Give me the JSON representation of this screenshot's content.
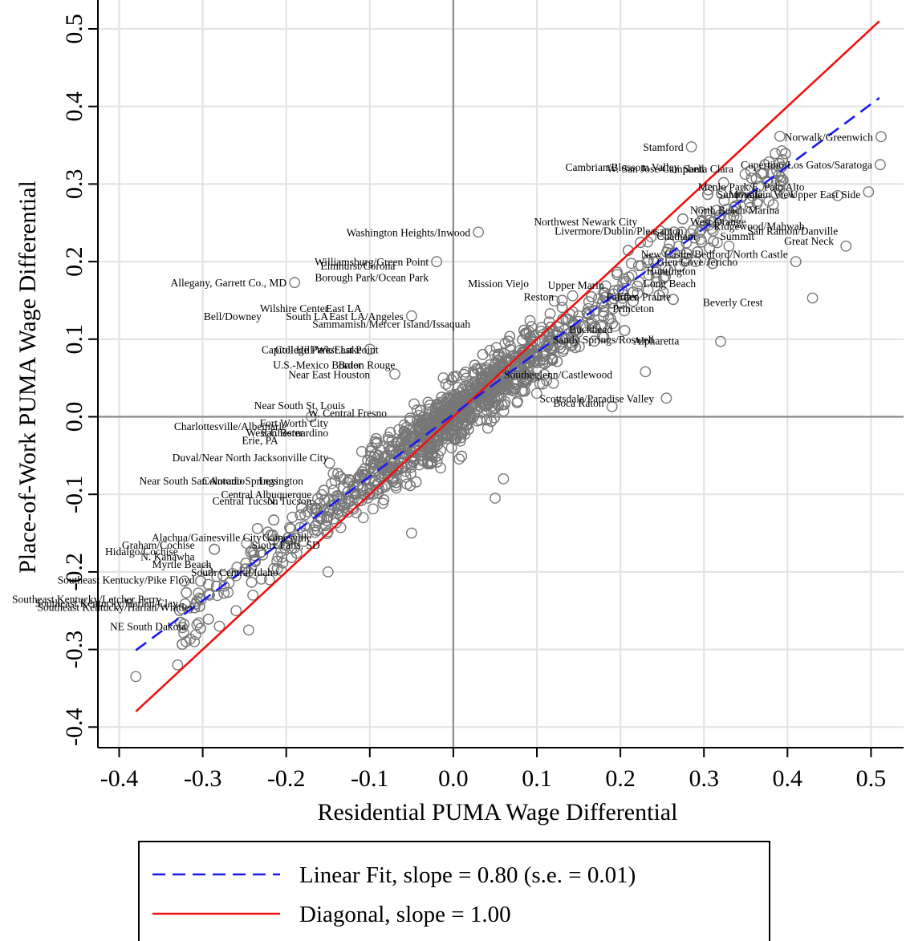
{
  "chart_data": {
    "type": "scatter",
    "xlabel": "Residential PUMA Wage Differential",
    "ylabel": "Place-of-Work PUMA Wage Differential",
    "xlim": [
      -0.42,
      0.535
    ],
    "ylim": [
      -0.44,
      0.535
    ],
    "x_ticks": [
      -0.4,
      -0.3,
      -0.2,
      -0.1,
      0.0,
      0.1,
      0.2,
      0.3,
      0.4,
      0.5
    ],
    "x_tick_labels": [
      "-0.4",
      "-0.3",
      "-0.2",
      "-0.1",
      "0.0",
      "0.1",
      "0.2",
      "0.3",
      "0.4",
      "0.5"
    ],
    "y_ticks": [
      -0.4,
      -0.3,
      -0.2,
      -0.1,
      0.0,
      0.1,
      0.2,
      0.3,
      0.4,
      0.5
    ],
    "y_tick_labels": [
      "-0.4",
      "-0.3",
      "-0.2",
      "-0.1",
      "0.0",
      "0.1",
      "0.2",
      "0.3",
      "0.4",
      "0.5"
    ],
    "grid": true,
    "reference_lines": {
      "x": 0.0,
      "y": 0.0
    },
    "colors": {
      "points": "#777777",
      "fit": "#1a1aee",
      "diagonal": "#ee1111",
      "grid": "#e3e3e3",
      "zero": "#8c8c8c"
    },
    "fit_line": {
      "name": "Linear Fit, slope =  0.80 (s.e. =  0.01)",
      "slope": 0.8,
      "intercept": 0.003,
      "x_range": [
        -0.38,
        0.51
      ],
      "style": "dashed"
    },
    "diagonal_line": {
      "name": "Diagonal, slope = 1.00",
      "slope": 1.0,
      "intercept": 0.0,
      "x_range": [
        -0.38,
        0.51
      ],
      "style": "solid"
    },
    "cloud_note": "approximately 2,000 PUMA points clustered along the diagonal",
    "points": [
      [
        -0.38,
        -0.335
      ],
      [
        -0.33,
        -0.32
      ],
      [
        -0.32,
        -0.29
      ],
      [
        -0.31,
        -0.29
      ],
      [
        -0.28,
        -0.27
      ],
      [
        -0.26,
        -0.25
      ],
      [
        -0.24,
        -0.23
      ],
      [
        -0.22,
        -0.21
      ],
      [
        -0.18,
        -0.15
      ],
      [
        -0.15,
        -0.12
      ],
      [
        -0.12,
        -0.09
      ],
      [
        -0.09,
        -0.07
      ],
      [
        -0.06,
        -0.04
      ],
      [
        -0.03,
        -0.01
      ],
      [
        0.0,
        0.01
      ],
      [
        0.03,
        0.03
      ],
      [
        0.06,
        0.05
      ],
      [
        0.09,
        0.08
      ],
      [
        0.12,
        0.11
      ],
      [
        0.15,
        0.13
      ],
      [
        0.18,
        0.16
      ],
      [
        0.21,
        0.18
      ],
      [
        0.24,
        0.2
      ],
      [
        0.27,
        0.22
      ],
      [
        0.29,
        0.2
      ],
      [
        0.33,
        0.22
      ],
      [
        0.41,
        0.2
      ],
      [
        0.47,
        0.22
      ],
      [
        0.285,
        0.348
      ],
      [
        0.512,
        0.361
      ],
      [
        0.511,
        0.325
      ],
      [
        0.497,
        0.29
      ],
      [
        0.46,
        0.285
      ],
      [
        0.43,
        0.153
      ],
      [
        0.32,
        0.097
      ],
      [
        0.255,
        0.024
      ],
      [
        0.23,
        0.058
      ],
      [
        0.19,
        0.013
      ],
      [
        0.03,
        0.238
      ],
      [
        -0.02,
        0.2
      ],
      [
        -0.19,
        0.173
      ],
      [
        -0.05,
        0.13
      ],
      [
        -0.1,
        0.087
      ],
      [
        -0.07,
        0.055
      ],
      [
        -0.05,
        -0.15
      ],
      [
        0.05,
        -0.105
      ],
      [
        0.06,
        -0.08
      ],
      [
        -0.15,
        -0.2
      ],
      [
        -0.245,
        -0.275
      ],
      [
        -0.17,
        0.0
      ]
    ],
    "labels": [
      {
        "text": "Norwalk/Greenwich",
        "x": 0.512,
        "y": 0.361
      },
      {
        "text": "Stamford",
        "x": 0.285,
        "y": 0.348
      },
      {
        "text": "Cupertino/Los Gatos/Saratoga",
        "x": 0.511,
        "y": 0.325
      },
      {
        "text": "Cambrian/Blossom Valley",
        "x": 0.28,
        "y": 0.322
      },
      {
        "text": "W. San Jose/Campbell",
        "x": 0.31,
        "y": 0.32
      },
      {
        "text": "Santa Clara",
        "x": 0.345,
        "y": 0.32
      },
      {
        "text": "Menlo Park/E. Palo Alto",
        "x": 0.43,
        "y": 0.297
      },
      {
        "text": "Sunnyvale",
        "x": 0.38,
        "y": 0.287
      },
      {
        "text": "Mountain View",
        "x": 0.42,
        "y": 0.287
      },
      {
        "text": "Upper East Side",
        "x": 0.497,
        "y": 0.287
      },
      {
        "text": "North Beach/Marina",
        "x": 0.4,
        "y": 0.267
      },
      {
        "text": "Northwest Newark City",
        "x": 0.23,
        "y": 0.252
      },
      {
        "text": "West Orange",
        "x": 0.36,
        "y": 0.252
      },
      {
        "text": "Ridgewood/Mahwah",
        "x": 0.43,
        "y": 0.246
      },
      {
        "text": "Livermore/Dublin/Pleasanton",
        "x": 0.285,
        "y": 0.24
      },
      {
        "text": "San Ramon/Danville",
        "x": 0.47,
        "y": 0.24
      },
      {
        "text": "Washington Heights/Inwood",
        "x": 0.03,
        "y": 0.238
      },
      {
        "text": "Chatham",
        "x": 0.3,
        "y": 0.233
      },
      {
        "text": "Summit",
        "x": 0.37,
        "y": 0.233
      },
      {
        "text": "Great Neck",
        "x": 0.465,
        "y": 0.227
      },
      {
        "text": "New Castle/Bedford/North Castle",
        "x": 0.41,
        "y": 0.21
      },
      {
        "text": "Williamsburg/Green Point",
        "x": -0.02,
        "y": 0.2
      },
      {
        "text": "Glen Cove/Jericho",
        "x": 0.35,
        "y": 0.2
      },
      {
        "text": "Elmhurst/Corona",
        "x": -0.06,
        "y": 0.195
      },
      {
        "text": "Huntington",
        "x": 0.3,
        "y": 0.188
      },
      {
        "text": "Borough Park/Ocean Park",
        "x": -0.02,
        "y": 0.18
      },
      {
        "text": "Allegany, Garrett Co., MD",
        "x": -0.19,
        "y": 0.173
      },
      {
        "text": "Mission Viejo",
        "x": 0.1,
        "y": 0.172
      },
      {
        "text": "Upper Marin",
        "x": 0.19,
        "y": 0.17
      },
      {
        "text": "Long Beach",
        "x": 0.3,
        "y": 0.172
      },
      {
        "text": "Reston",
        "x": 0.13,
        "y": 0.155
      },
      {
        "text": "Fairfax",
        "x": 0.23,
        "y": 0.155
      },
      {
        "text": "Eden Prairie",
        "x": 0.27,
        "y": 0.155
      },
      {
        "text": "Beverly Crest",
        "x": 0.38,
        "y": 0.148
      },
      {
        "text": "Princeton",
        "x": 0.25,
        "y": 0.14
      },
      {
        "text": "Wilshire Center",
        "x": -0.14,
        "y": 0.14
      },
      {
        "text": "East LA",
        "x": -0.1,
        "y": 0.14
      },
      {
        "text": "Bell/Downey",
        "x": -0.22,
        "y": 0.13
      },
      {
        "text": "South LA",
        "x": -0.14,
        "y": 0.13
      },
      {
        "text": "East LA/Angeles",
        "x": -0.05,
        "y": 0.13
      },
      {
        "text": "Sammamish/Mercer Island/Issaquah",
        "x": 0.03,
        "y": 0.12
      },
      {
        "text": "Buckhead",
        "x": 0.2,
        "y": 0.113
      },
      {
        "text": "Sandy Springs/Roswell",
        "x": 0.25,
        "y": 0.1
      },
      {
        "text": "Alpharetta",
        "x": 0.28,
        "y": 0.098
      },
      {
        "text": "College Park/East Point",
        "x": -0.08,
        "y": 0.087
      },
      {
        "text": "Capitol Hill/West Lake",
        "x": -0.1,
        "y": 0.087
      },
      {
        "text": "U.S.-Mexico Border",
        "x": -0.1,
        "y": 0.067
      },
      {
        "text": "Baton Rouge",
        "x": -0.06,
        "y": 0.067
      },
      {
        "text": "Near East Houston",
        "x": -0.09,
        "y": 0.055
      },
      {
        "text": "Southeglenn/Castlewood",
        "x": 0.2,
        "y": 0.055
      },
      {
        "text": "Scottsdale/Paradise Valley",
        "x": 0.25,
        "y": 0.024
      },
      {
        "text": "Boca Raton",
        "x": 0.19,
        "y": 0.018
      },
      {
        "text": "Near South St. Louis",
        "x": -0.12,
        "y": 0.015
      },
      {
        "text": "W. Central Fresno",
        "x": -0.07,
        "y": 0.005
      },
      {
        "text": "Fort Worth City",
        "x": -0.14,
        "y": -0.008
      },
      {
        "text": "Charlottesville/Albemarle",
        "x": -0.19,
        "y": -0.012
      },
      {
        "text": "West Chester",
        "x": -0.17,
        "y": -0.02
      },
      {
        "text": "San Bernardino",
        "x": -0.14,
        "y": -0.02
      },
      {
        "text": "Erie, PA",
        "x": -0.2,
        "y": -0.03
      },
      {
        "text": "Duval/Near North Jacksonville City",
        "x": -0.14,
        "y": -0.052
      },
      {
        "text": "Near South San Antonio",
        "x": -0.24,
        "y": -0.082
      },
      {
        "text": "Colorado Springs",
        "x": -0.2,
        "y": -0.082
      },
      {
        "text": "Lexington",
        "x": -0.17,
        "y": -0.082
      },
      {
        "text": "Central Albuquerque",
        "x": -0.16,
        "y": -0.1
      },
      {
        "text": "Central Tucson",
        "x": -0.2,
        "y": -0.108
      },
      {
        "text": "N. Tucson",
        "x": -0.16,
        "y": -0.108
      },
      {
        "text": "Alachua/Gainesville City",
        "x": -0.22,
        "y": -0.155
      },
      {
        "text": "Gainesville",
        "x": -0.16,
        "y": -0.155
      },
      {
        "text": "Graham/Cochise",
        "x": -0.3,
        "y": -0.165
      },
      {
        "text": "Hidalgo/Cochise",
        "x": -0.32,
        "y": -0.173
      },
      {
        "text": "Sioux Falls, SD",
        "x": -0.15,
        "y": -0.165
      },
      {
        "text": "N. Kanawha",
        "x": -0.3,
        "y": -0.18
      },
      {
        "text": "Myrtle Beach",
        "x": -0.28,
        "y": -0.19
      },
      {
        "text": "South Central Idaho",
        "x": -0.2,
        "y": -0.2
      },
      {
        "text": "Southeast Kentucky/Pike Floyd",
        "x": -0.3,
        "y": -0.21
      },
      {
        "text": "Southeast Kentucky/Letcher Perry",
        "x": -0.34,
        "y": -0.235
      },
      {
        "text": "Southeast Kentucky/Harlan/Clay",
        "x": -0.32,
        "y": -0.24
      },
      {
        "text": "Southeast Kentucky/Harlan/Whitley",
        "x": -0.3,
        "y": -0.245
      },
      {
        "text": "NE South Dakota",
        "x": -0.31,
        "y": -0.27
      }
    ]
  },
  "legend": {
    "fit_label": "Linear Fit, slope =  0.80 (s.e. =  0.01)",
    "diagonal_label": "Diagonal, slope = 1.00"
  }
}
